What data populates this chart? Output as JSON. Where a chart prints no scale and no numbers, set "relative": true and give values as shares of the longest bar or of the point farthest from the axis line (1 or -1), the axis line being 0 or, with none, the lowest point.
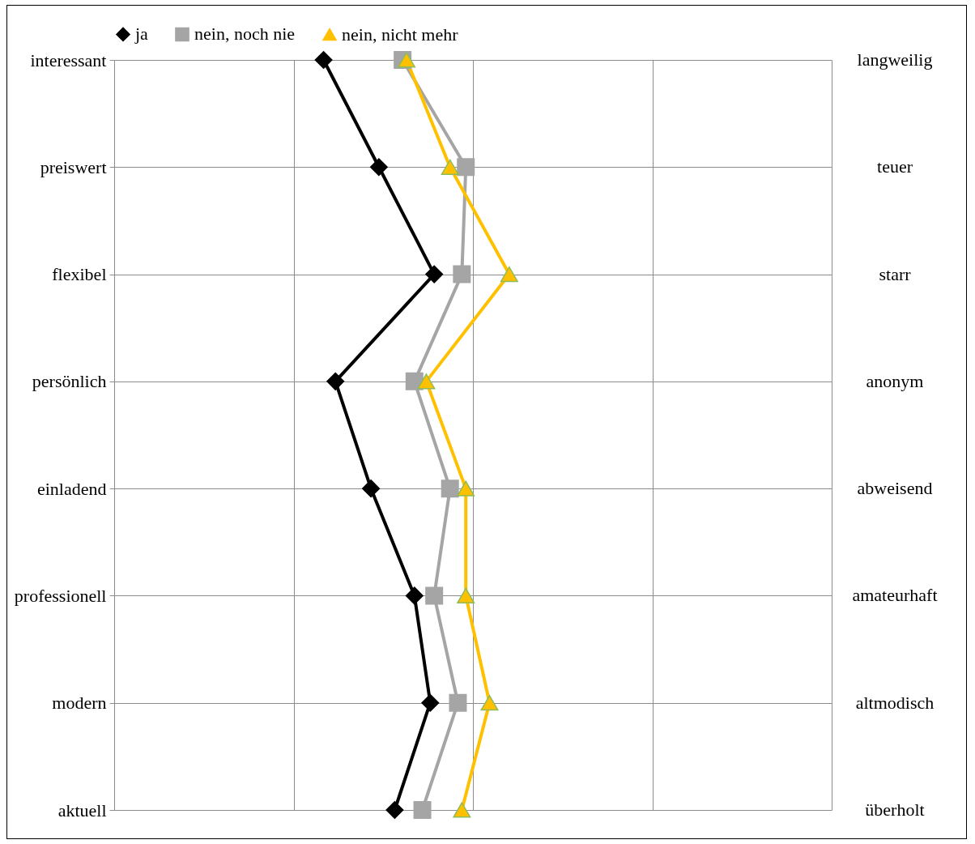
{
  "chart_data": {
    "type": "line",
    "orientation": "horizontal",
    "relative": true,
    "grid": true,
    "legend": "top",
    "categories": [
      "interessant",
      "preiswert",
      "flexibel",
      "persönlich",
      "einladend",
      "professionell",
      "modern",
      "aktuell"
    ],
    "y2_categories": [
      "langweilig",
      "teuer",
      "starr",
      "anonym",
      "abweisend",
      "amateurhaft",
      "altmodisch",
      "überholt"
    ],
    "series": [
      {
        "name": "ja",
        "color": "#000000",
        "marker": "diamond",
        "values": [
          0.53,
          0.67,
          0.81,
          0.56,
          0.65,
          0.76,
          0.8,
          0.71
        ]
      },
      {
        "name": "nein, noch nie",
        "color": "#a5a5a5",
        "marker": "square",
        "values": [
          0.73,
          0.89,
          0.88,
          0.76,
          0.85,
          0.81,
          0.87,
          0.78
        ]
      },
      {
        "name": "nein, nicht mehr",
        "color": "#ffc000",
        "marker": "triangle",
        "values": [
          0.74,
          0.85,
          1,
          0.79,
          0.89,
          0.89,
          0.95,
          0.88
        ]
      }
    ]
  }
}
